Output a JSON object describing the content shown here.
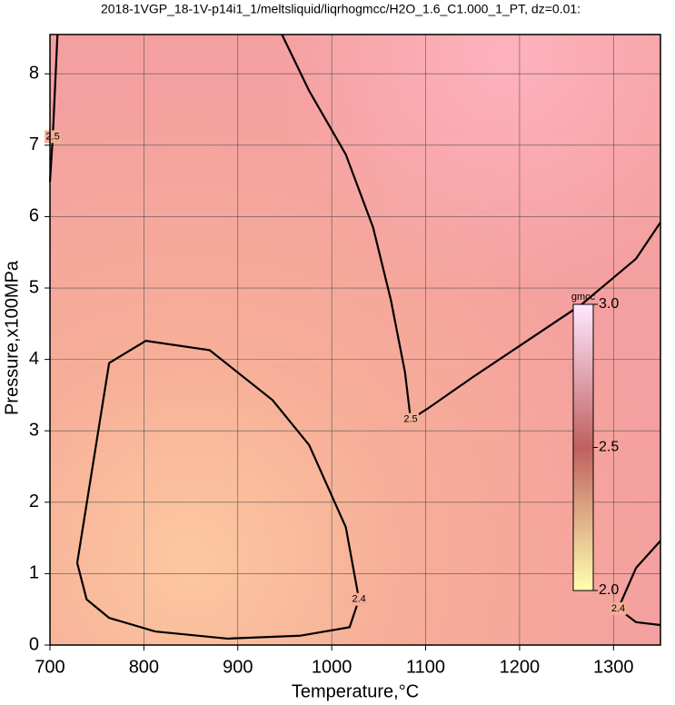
{
  "chart_data": {
    "type": "contour",
    "title": "2018-1VGP_18-1V-p14i1_1/meltsliquid/liqrhogmcc/H2O_1.6_C1.000_1_PT, dz=0.01:",
    "xlabel": "Temperature,°C",
    "ylabel": "Pressure,x100MPa",
    "xlim": [
      700,
      1350
    ],
    "ylim": [
      0,
      8.55
    ],
    "xticks": [
      700,
      800,
      900,
      1000,
      1100,
      1200,
      1300
    ],
    "yticks": [
      0,
      1,
      2,
      3,
      4,
      5,
      6,
      7,
      8
    ],
    "grid": true,
    "line_color": "#000000",
    "contours": [
      {
        "level": 2.4,
        "x": [
          729,
          763,
          802,
          870,
          937,
          976,
          1015,
          1029,
          1019,
          966,
          889,
          812,
          763,
          739,
          729
        ],
        "y": [
          1.15,
          3.95,
          4.26,
          4.13,
          3.43,
          2.8,
          1.65,
          0.64,
          0.25,
          0.13,
          0.09,
          0.19,
          0.38,
          0.64,
          1.15
        ]
      },
      {
        "level": 2.5,
        "x": [
          947,
          976,
          1015,
          1044,
          1063,
          1078,
          1084,
          1102,
          1150,
          1208,
          1266,
          1324,
          1350
        ],
        "y": [
          8.55,
          7.76,
          6.87,
          5.85,
          4.83,
          3.82,
          3.16,
          3.31,
          3.75,
          4.26,
          4.77,
          5.41,
          5.92
        ]
      },
      {
        "level": 2.4,
        "x": [
          1350,
          1324,
          1305,
          1324,
          1350
        ],
        "y": [
          1.46,
          1.08,
          0.51,
          0.32,
          0.28
        ]
      },
      {
        "level": 2.5,
        "x": [
          708,
          703,
          700
        ],
        "y": [
          8.55,
          7.12,
          6.49
        ]
      }
    ],
    "colorbar": {
      "label": "gmcc",
      "lim": [
        2.0,
        3.0
      ],
      "ticks": [
        {
          "value": 2.0,
          "label": "2.0"
        },
        2.5,
        {
          "value": 3.0,
          "label": "3.0"
        }
      ],
      "colors": [
        "#ffffb0",
        "#c06060",
        "#ffe8ff"
      ]
    }
  }
}
